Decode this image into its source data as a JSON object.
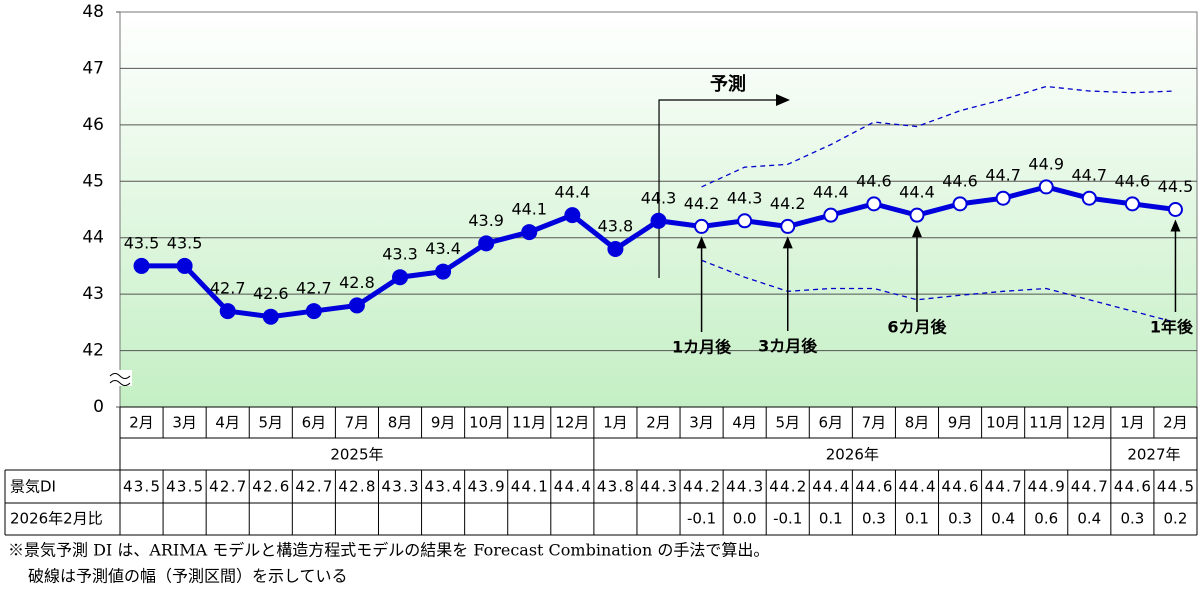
{
  "chart_data": {
    "type": "line",
    "categories": [
      "2月",
      "3月",
      "4月",
      "5月",
      "6月",
      "7月",
      "8月",
      "9月",
      "10月",
      "11月",
      "12月",
      "1月",
      "2月",
      "3月",
      "4月",
      "5月",
      "6月",
      "7月",
      "8月",
      "9月",
      "10月",
      "11月",
      "12月",
      "1月",
      "2月"
    ],
    "year_groups": [
      {
        "label": "2025年",
        "start": 0,
        "end": 10
      },
      {
        "label": "2026年",
        "start": 11,
        "end": 22
      },
      {
        "label": "2027年",
        "start": 23,
        "end": 24
      }
    ],
    "series": [
      {
        "name": "景気DI",
        "color": "#0000dd",
        "values": [
          43.5,
          43.5,
          42.7,
          42.6,
          42.7,
          42.8,
          43.3,
          43.4,
          43.9,
          44.1,
          44.4,
          43.8,
          44.3,
          44.2,
          44.3,
          44.2,
          44.4,
          44.6,
          44.4,
          44.6,
          44.7,
          44.9,
          44.7,
          44.6,
          44.5
        ],
        "hollow_from": 13
      },
      {
        "name": "upper",
        "color": "#0000cc",
        "dashed": true,
        "values": [
          null,
          null,
          null,
          null,
          null,
          null,
          null,
          null,
          null,
          null,
          null,
          null,
          null,
          44.9,
          45.25,
          45.3,
          45.65,
          46.05,
          45.97,
          46.25,
          46.45,
          46.68,
          46.6,
          46.57,
          46.6
        ]
      },
      {
        "name": "lower",
        "color": "#0000cc",
        "dashed": true,
        "values": [
          null,
          null,
          null,
          null,
          null,
          null,
          null,
          null,
          null,
          null,
          null,
          null,
          null,
          43.6,
          43.3,
          43.05,
          43.1,
          43.1,
          42.9,
          42.98,
          43.05,
          43.1,
          42.9,
          42.7,
          42.5
        ]
      }
    ],
    "change_row": {
      "name": "2026年2月比",
      "values": [
        null,
        null,
        null,
        null,
        null,
        null,
        null,
        null,
        null,
        null,
        null,
        null,
        null,
        -0.1,
        0,
        -0.1,
        0.1,
        0.3,
        0.1,
        0.3,
        0.4,
        0.6,
        0.4,
        0.3,
        0.2
      ],
      "value_labels": [
        null,
        null,
        null,
        null,
        null,
        null,
        null,
        null,
        null,
        null,
        null,
        null,
        null,
        "-0.1",
        "0.0",
        "-0.1",
        "0.1",
        "0.3",
        "0.1",
        "0.3",
        "0.4",
        "0.6",
        "0.4",
        "0.3",
        "0.2"
      ]
    },
    "ylim": [
      0,
      48
    ],
    "axis_break": [
      0,
      41
    ],
    "yticks": [
      0,
      42,
      43,
      44,
      45,
      46,
      47,
      48
    ],
    "grid": true,
    "forecast_label": "予測",
    "annotations": [
      {
        "text": "1カ月後",
        "index": 13
      },
      {
        "text": "3カ月後",
        "index": 15
      },
      {
        "text": "6カ月後",
        "index": 18
      },
      {
        "text": "1年後",
        "index": 24
      }
    ],
    "notes": [
      "※景気予測 DI は、ARIMA モデルと構造方程式モデルの結果を Forecast Combination の手法で算出。",
      "破線は予測値の幅（予測区間）を示している"
    ]
  }
}
